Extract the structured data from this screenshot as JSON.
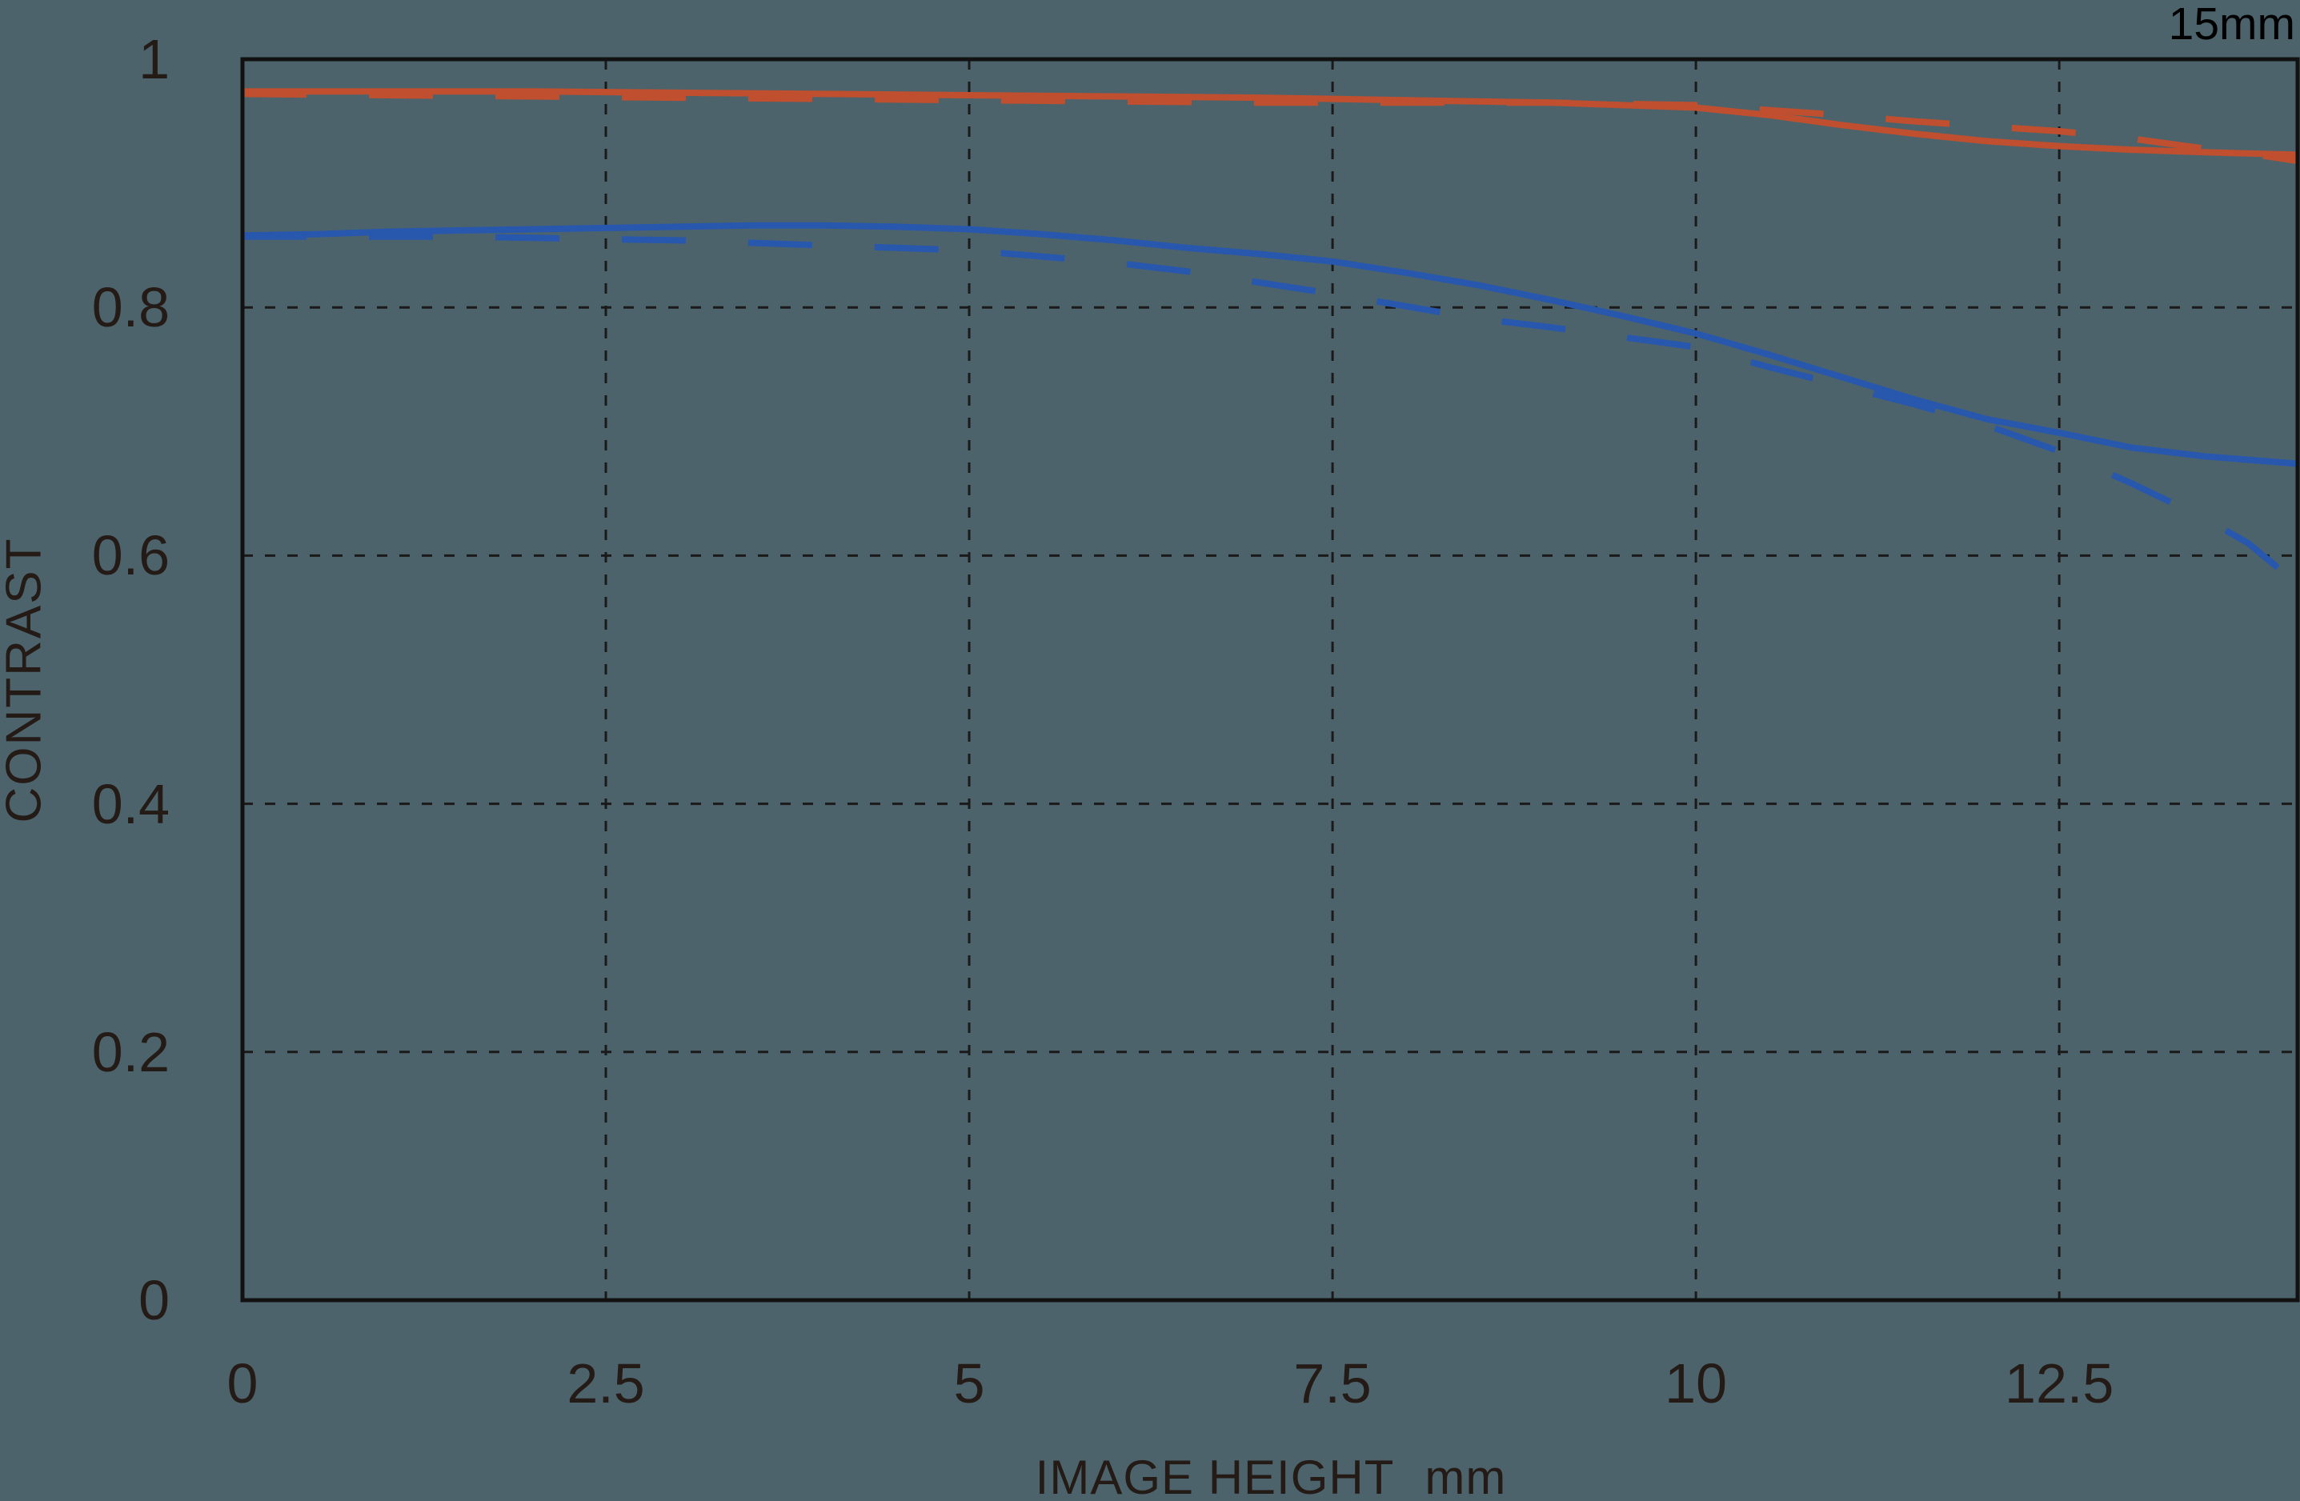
{
  "page": {
    "background_color": "#4d636b"
  },
  "header": {
    "focal_length_label": "15mm"
  },
  "chart_data": {
    "type": "line",
    "title": "",
    "xlabel": "IMAGE HEIGHT",
    "x_unit": "mm",
    "ylabel": "CONTRAST",
    "xlim": [
      0,
      14.14
    ],
    "ylim": [
      0,
      1
    ],
    "grid": "dashed",
    "legend": "none",
    "colors": {
      "red_line": "#bf4f2e",
      "blue_line": "#2857ae",
      "grid": "#1a1a1a",
      "axis": "#111111",
      "text": "#241a16",
      "corner_text": "#000000"
    },
    "x_ticks": [
      {
        "value": 0,
        "label": "0",
        "grid": false
      },
      {
        "value": 2.5,
        "label": "2.5",
        "grid": true
      },
      {
        "value": 5,
        "label": "5",
        "grid": true
      },
      {
        "value": 7.5,
        "label": "7.5",
        "grid": true
      },
      {
        "value": 10,
        "label": "10",
        "grid": true
      },
      {
        "value": 12.5,
        "label": "12.5",
        "grid": true
      }
    ],
    "y_ticks": [
      {
        "value": 1,
        "label": "1",
        "grid": false
      },
      {
        "value": 0.8,
        "label": "0.8",
        "grid": true
      },
      {
        "value": 0.6,
        "label": "0.6",
        "grid": true
      },
      {
        "value": 0.4,
        "label": "0.4",
        "grid": true
      },
      {
        "value": 0.2,
        "label": "0.2",
        "grid": true
      },
      {
        "value": 0,
        "label": "0",
        "grid": false
      }
    ],
    "series": [
      {
        "id": "red-solid",
        "name": "red solid",
        "style": "solid",
        "color_key": "red_line",
        "points": [
          [
            0,
            0.974
          ],
          [
            1,
            0.974
          ],
          [
            2,
            0.974
          ],
          [
            3,
            0.973
          ],
          [
            4,
            0.972
          ],
          [
            5,
            0.971
          ],
          [
            6,
            0.97
          ],
          [
            7,
            0.969
          ],
          [
            7.5,
            0.968
          ],
          [
            8,
            0.967
          ],
          [
            8.5,
            0.966
          ],
          [
            9,
            0.965
          ],
          [
            9.5,
            0.963
          ],
          [
            10,
            0.961
          ],
          [
            10.5,
            0.955
          ],
          [
            11,
            0.947
          ],
          [
            11.5,
            0.94
          ],
          [
            12,
            0.934
          ],
          [
            12.5,
            0.93
          ],
          [
            13,
            0.927
          ],
          [
            13.5,
            0.925
          ],
          [
            14.14,
            0.923
          ]
        ]
      },
      {
        "id": "red-dashed",
        "name": "red dashed",
        "style": "dashed",
        "color_key": "red_line",
        "points": [
          [
            0,
            0.972
          ],
          [
            1,
            0.971
          ],
          [
            2,
            0.97
          ],
          [
            3,
            0.969
          ],
          [
            4,
            0.968
          ],
          [
            5,
            0.967
          ],
          [
            6,
            0.966
          ],
          [
            7,
            0.965
          ],
          [
            7.5,
            0.965
          ],
          [
            8,
            0.965
          ],
          [
            8.5,
            0.965
          ],
          [
            9,
            0.965
          ],
          [
            9.5,
            0.964
          ],
          [
            10,
            0.963
          ],
          [
            10.5,
            0.959
          ],
          [
            11,
            0.955
          ],
          [
            11.5,
            0.95
          ],
          [
            12,
            0.946
          ],
          [
            12.5,
            0.942
          ],
          [
            13,
            0.936
          ],
          [
            13.5,
            0.928
          ],
          [
            13.8,
            0.924
          ],
          [
            14.14,
            0.918
          ]
        ]
      },
      {
        "id": "blue-solid",
        "name": "blue solid",
        "style": "solid",
        "color_key": "blue_line",
        "points": [
          [
            0,
            0.858
          ],
          [
            0.5,
            0.859
          ],
          [
            1,
            0.861
          ],
          [
            1.5,
            0.862
          ],
          [
            2,
            0.863
          ],
          [
            2.5,
            0.864
          ],
          [
            3,
            0.865
          ],
          [
            3.5,
            0.866
          ],
          [
            4,
            0.866
          ],
          [
            4.5,
            0.865
          ],
          [
            5,
            0.863
          ],
          [
            5.5,
            0.859
          ],
          [
            6,
            0.854
          ],
          [
            6.5,
            0.848
          ],
          [
            7,
            0.843
          ],
          [
            7.5,
            0.837
          ],
          [
            8,
            0.828
          ],
          [
            8.5,
            0.818
          ],
          [
            9,
            0.806
          ],
          [
            9.5,
            0.793
          ],
          [
            10,
            0.779
          ],
          [
            10.5,
            0.762
          ],
          [
            11,
            0.744
          ],
          [
            11.5,
            0.726
          ],
          [
            12,
            0.71
          ],
          [
            12.5,
            0.699
          ],
          [
            13,
            0.687
          ],
          [
            13.5,
            0.68
          ],
          [
            14.14,
            0.674
          ]
        ]
      },
      {
        "id": "blue-dashed",
        "name": "blue dashed",
        "style": "dashed",
        "color_key": "blue_line",
        "points": [
          [
            0,
            0.857
          ],
          [
            0.5,
            0.857
          ],
          [
            1,
            0.857
          ],
          [
            1.5,
            0.857
          ],
          [
            2,
            0.856
          ],
          [
            2.5,
            0.855
          ],
          [
            3,
            0.854
          ],
          [
            3.5,
            0.852
          ],
          [
            4,
            0.85
          ],
          [
            4.5,
            0.848
          ],
          [
            5,
            0.846
          ],
          [
            5.5,
            0.841
          ],
          [
            6,
            0.836
          ],
          [
            6.5,
            0.829
          ],
          [
            7,
            0.82
          ],
          [
            7.5,
            0.811
          ],
          [
            8,
            0.801
          ],
          [
            8.5,
            0.791
          ],
          [
            9,
            0.784
          ],
          [
            9.5,
            0.776
          ],
          [
            10,
            0.768
          ],
          [
            10.5,
            0.752
          ],
          [
            11,
            0.737
          ],
          [
            11.5,
            0.722
          ],
          [
            12,
            0.705
          ],
          [
            12.5,
            0.684
          ],
          [
            13,
            0.658
          ],
          [
            13.5,
            0.63
          ],
          [
            13.8,
            0.61
          ],
          [
            14.14,
            0.577
          ]
        ]
      }
    ]
  }
}
